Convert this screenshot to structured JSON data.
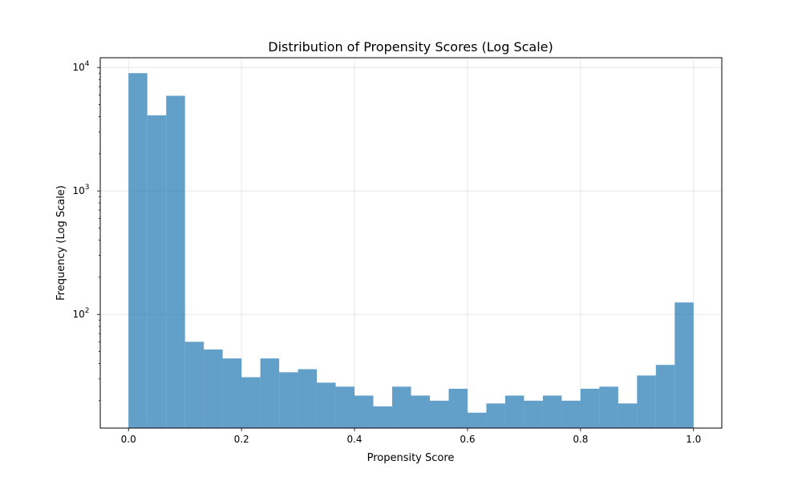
{
  "chart_data": {
    "type": "bar",
    "title": "Distribution of Propensity Scores (Log Scale)",
    "xlabel": "Propensity Score",
    "ylabel": "Frequency (Log Scale)",
    "xlim": [
      -0.05,
      1.05
    ],
    "ylim": [
      12,
      12000
    ],
    "y_scale": "log",
    "grid": true,
    "color": "#1f77b4",
    "bar_alpha": 0.7,
    "x_ticks": [
      {
        "value": 0.0,
        "label": "0.0"
      },
      {
        "value": 0.2,
        "label": "0.2"
      },
      {
        "value": 0.4,
        "label": "0.4"
      },
      {
        "value": 0.6,
        "label": "0.6"
      },
      {
        "value": 0.8,
        "label": "0.8"
      },
      {
        "value": 1.0,
        "label": "1.0"
      }
    ],
    "y_ticks": [
      {
        "value": 100,
        "base": "10",
        "exp": "2"
      },
      {
        "value": 1000,
        "base": "10",
        "exp": "3"
      },
      {
        "value": 10000,
        "base": "10",
        "exp": "4"
      }
    ],
    "bins": {
      "start": 0.0,
      "end": 1.0,
      "count": 30
    },
    "values": [
      9000,
      4100,
      5900,
      60,
      52,
      44,
      31,
      44,
      34,
      36,
      28,
      26,
      22,
      18,
      26,
      22,
      20,
      25,
      16,
      19,
      22,
      20,
      22,
      20,
      25,
      26,
      19,
      32,
      39,
      125
    ]
  }
}
